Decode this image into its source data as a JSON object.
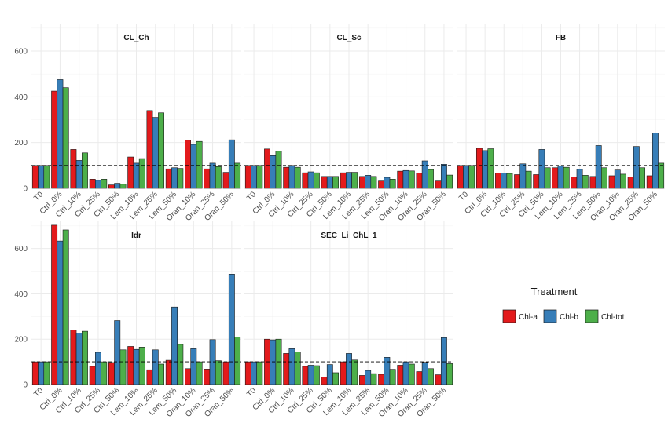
{
  "chart_data": {
    "type": "bar",
    "layout": "facet-grid 2 rows x 3 columns",
    "ylim": [
      0,
      720
    ],
    "yticks": [
      0,
      200,
      400,
      600
    ],
    "reference_line": 100,
    "categories": [
      "T0",
      "Ctrl_0%",
      "Ctrl_10%",
      "Ctrl_25%",
      "Ctrl_50%",
      "Lem_10%",
      "Lem_25%",
      "Lem_50%",
      "Oran_10%",
      "Oran_25%",
      "Oran_50%"
    ],
    "legend": {
      "title": "Treatment",
      "items": [
        {
          "label": "Chl-a",
          "color": "#e31a1c"
        },
        {
          "label": "Chl-b",
          "color": "#377eb8"
        },
        {
          "label": "Chl-tot",
          "color": "#4daf4a"
        }
      ]
    },
    "panels": [
      {
        "title": "CL_Ch",
        "series": [
          {
            "name": "Chl-a",
            "values": [
              100,
              425,
              170,
              40,
              15,
              137,
              340,
              85,
              210,
              85,
              70
            ]
          },
          {
            "name": "Chl-b",
            "values": [
              100,
              475,
              122,
              35,
              22,
              110,
              310,
              90,
              192,
              110,
              212
            ]
          },
          {
            "name": "Chl-tot",
            "values": [
              100,
              440,
              155,
              40,
              18,
              130,
              330,
              87,
              205,
              95,
              110
            ]
          }
        ]
      },
      {
        "title": "CL_Sc",
        "series": [
          {
            "name": "Chl-a",
            "values": [
              100,
              172,
              92,
              68,
              52,
              68,
              52,
              32,
              75,
              67,
              32
            ]
          },
          {
            "name": "Chl-b",
            "values": [
              100,
              143,
              100,
              72,
              52,
              70,
              57,
              48,
              78,
              120,
              105
            ]
          },
          {
            "name": "Chl-tot",
            "values": [
              100,
              162,
              92,
              68,
              52,
              70,
              52,
              40,
              76,
              82,
              58
            ]
          }
        ]
      },
      {
        "title": "FB",
        "series": [
          {
            "name": "Chl-a",
            "values": [
              100,
              175,
              67,
              60,
              60,
              90,
              50,
              52,
              55,
              50,
              55
            ]
          },
          {
            "name": "Chl-b",
            "values": [
              100,
              165,
              67,
              107,
              170,
              97,
              83,
              187,
              80,
              183,
              242
            ]
          },
          {
            "name": "Chl-tot",
            "values": [
              100,
              173,
              65,
              75,
              90,
              92,
              57,
              90,
              62,
              90,
              110
            ]
          }
        ]
      },
      {
        "title": "Idr",
        "series": [
          {
            "name": "Chl-a",
            "values": [
              100,
              703,
              240,
              80,
              97,
              168,
              65,
              107,
              70,
              68,
              100
            ]
          },
          {
            "name": "Chl-b",
            "values": [
              100,
              633,
              227,
              142,
              282,
              155,
              153,
              342,
              158,
              198,
              487
            ]
          },
          {
            "name": "Chl-tot",
            "values": [
              100,
              682,
              235,
              100,
              153,
              165,
              90,
              177,
              100,
              105,
              210
            ]
          }
        ]
      },
      {
        "title": "SEC_Li_ChL_1",
        "series": [
          {
            "name": "Chl-a",
            "values": [
              100,
              200,
              137,
              80,
              33,
              100,
              40,
              45,
              85,
              57,
              43
            ]
          },
          {
            "name": "Chl-b",
            "values": [
              100,
              197,
              158,
              85,
              88,
              137,
              62,
              120,
              100,
              98,
              207
            ]
          },
          {
            "name": "Chl-tot",
            "values": [
              100,
              200,
              143,
              83,
              52,
              108,
              48,
              67,
              90,
              70,
              92
            ]
          }
        ]
      }
    ]
  }
}
